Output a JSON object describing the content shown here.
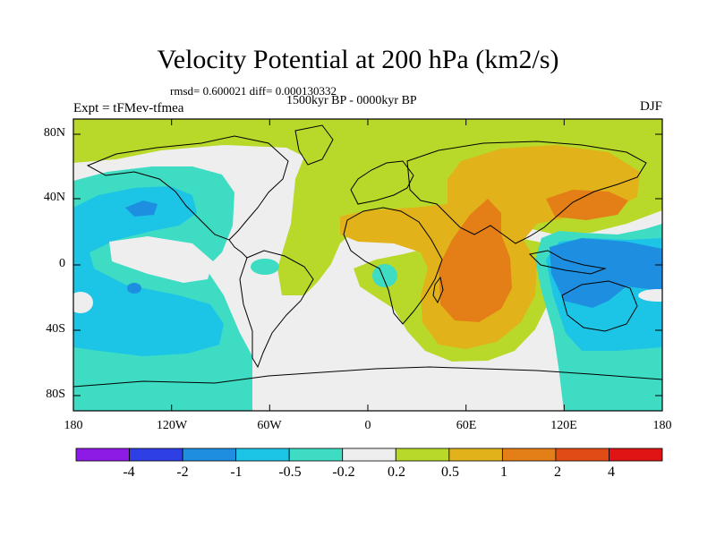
{
  "header": {
    "title": "Velocity Potential at 200 hPa (km2/s)",
    "stats": "rmsd= 0.600021 diff= 0.000130332",
    "subtitle": "1500kyr BP - 0000kyr BP",
    "experiment": "Expt = tFMev-tfmea",
    "season": "DJF"
  },
  "map": {
    "lat_ticks": [
      "80N",
      "40N",
      "0",
      "40S",
      "80S"
    ],
    "lon_ticks": [
      "180",
      "120W",
      "60W",
      "0",
      "60E",
      "120E",
      "180"
    ]
  },
  "colorbar": {
    "labels": [
      "-4",
      "-2",
      "-1",
      "-0.5",
      "-0.2",
      "0.2",
      "0.5",
      "1",
      "2",
      "4"
    ],
    "colors": [
      "#8e1ae6",
      "#2e3fe3",
      "#1e8fe0",
      "#1cc4e6",
      "#3fdcc4",
      "#eeeeee",
      "#b9d92a",
      "#e2b21a",
      "#e47f18",
      "#e04b16",
      "#e01414"
    ]
  }
}
